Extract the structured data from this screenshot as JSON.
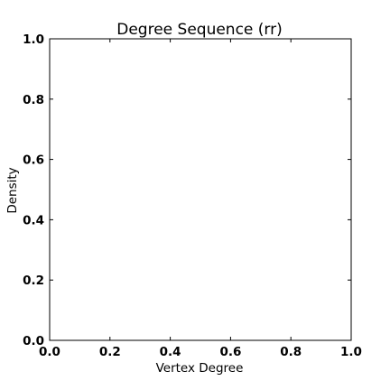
{
  "chart_data": {
    "type": "line",
    "title": "Degree Sequence (rr)",
    "xlabel": "Vertex Degree",
    "ylabel": "Density",
    "xlim": [
      0.0,
      1.0
    ],
    "ylim": [
      0.0,
      1.0
    ],
    "x_ticks": [
      0.0,
      0.2,
      0.4,
      0.6,
      0.8,
      1.0
    ],
    "y_ticks": [
      0.0,
      0.2,
      0.4,
      0.6,
      0.8,
      1.0
    ],
    "x_tick_labels": [
      "0.0",
      "0.2",
      "0.4",
      "0.6",
      "0.8",
      "1.0"
    ],
    "y_tick_labels": [
      "0.0",
      "0.2",
      "0.4",
      "0.6",
      "0.8",
      "1.0"
    ],
    "series": [],
    "grid": false,
    "legend": false
  }
}
